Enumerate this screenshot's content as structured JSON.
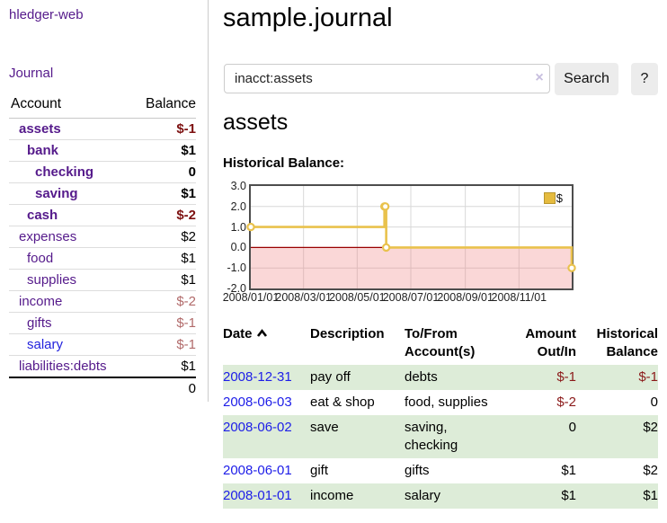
{
  "app": {
    "title": "hledger-web"
  },
  "sidebar": {
    "journal_link": "Journal",
    "accounts_table": {
      "headers": {
        "account": "Account",
        "balance": "Balance"
      },
      "rows": [
        {
          "name": "assets",
          "depth": 1,
          "bold": true,
          "balance": "$-1",
          "neg": true,
          "muted": false
        },
        {
          "name": "bank",
          "depth": 2,
          "bold": true,
          "balance": "$1",
          "neg": false,
          "muted": false
        },
        {
          "name": "checking",
          "depth": 3,
          "bold": true,
          "balance": "0",
          "neg": false,
          "muted": false
        },
        {
          "name": "saving",
          "depth": 3,
          "bold": true,
          "balance": "$1",
          "neg": false,
          "muted": false
        },
        {
          "name": "cash",
          "depth": 2,
          "bold": true,
          "balance": "$-2",
          "neg": true,
          "muted": false
        },
        {
          "name": "expenses",
          "depth": 1,
          "bold": false,
          "balance": "$2",
          "neg": false,
          "muted": false
        },
        {
          "name": "food",
          "depth": 2,
          "bold": false,
          "balance": "$1",
          "neg": false,
          "muted": false
        },
        {
          "name": "supplies",
          "depth": 2,
          "bold": false,
          "balance": "$1",
          "neg": false,
          "muted": false
        },
        {
          "name": "income",
          "depth": 1,
          "bold": false,
          "balance": "$-2",
          "neg": true,
          "muted": true
        },
        {
          "name": "gifts",
          "depth": 2,
          "bold": false,
          "balance": "$-1",
          "neg": true,
          "muted": true
        },
        {
          "name": "salary",
          "depth": 2,
          "bold": false,
          "balance": "$-1",
          "neg": true,
          "muted": true,
          "link_color": "blue"
        },
        {
          "name": "liabilities:debts",
          "depth": 1,
          "bold": false,
          "balance": "$1",
          "neg": false,
          "muted": false
        }
      ],
      "total": "0"
    }
  },
  "main": {
    "title": "sample.journal",
    "search": {
      "value": "inacct:assets",
      "clear_label": "×",
      "button_label": "Search",
      "help_label": "?"
    },
    "account_heading": "assets",
    "chart_heading": "Historical Balance:"
  },
  "chart_data": {
    "type": "line",
    "title": "Historical Balance:",
    "step": true,
    "x_domain": [
      "2008-01-01",
      "2008-12-31"
    ],
    "y_domain": [
      -2,
      3
    ],
    "x_ticks": [
      {
        "date": "2008-01-01",
        "label": "2008/01/01"
      },
      {
        "date": "2008-03-01",
        "label": "2008/03/01"
      },
      {
        "date": "2008-05-01",
        "label": "2008/05/01"
      },
      {
        "date": "2008-07-01",
        "label": "2008/07/01"
      },
      {
        "date": "2008-09-01",
        "label": "2008/09/01"
      },
      {
        "date": "2008-11-01",
        "label": "2008/11/01"
      }
    ],
    "y_ticks": [
      {
        "value": 3,
        "label": "3.0"
      },
      {
        "value": 2,
        "label": "2.0"
      },
      {
        "value": 1,
        "label": "1.0"
      },
      {
        "value": 0,
        "label": "0.0"
      },
      {
        "value": -1,
        "label": "-1.0"
      },
      {
        "value": -2,
        "label": "-2.0"
      }
    ],
    "series": [
      {
        "name": "$",
        "color": "#e9c24d",
        "points": [
          {
            "date": "2008-01-01",
            "value": 1
          },
          {
            "date": "2008-06-01",
            "value": 2
          },
          {
            "date": "2008-06-02",
            "value": 2
          },
          {
            "date": "2008-06-03",
            "value": 0
          },
          {
            "date": "2008-12-31",
            "value": -1
          }
        ]
      }
    ],
    "legend": {
      "label": "$",
      "position": "top-right"
    },
    "grid": true,
    "grid_color": "#d8d8d8",
    "zero_line_color": "#990000",
    "negative_region_rgba": "rgba(240,130,130,0.32)",
    "border_color": "#4d4d4d"
  },
  "transactions": {
    "sort": "date-ascending",
    "headers": {
      "date": "Date",
      "description": "Description",
      "accounts_line1": "To/From",
      "accounts_line2": "Account(s)",
      "amount_line1": "Amount",
      "amount_line2": "Out/In",
      "balance_line1": "Historical",
      "balance_line2": "Balance"
    },
    "rows": [
      {
        "date": "2008-12-31",
        "description": "pay off",
        "accounts": "debts",
        "amount": "$-1",
        "amount_neg": true,
        "balance": "$-1",
        "balance_neg": true
      },
      {
        "date": "2008-06-03",
        "description": "eat & shop",
        "accounts": "food, supplies",
        "amount": "$-2",
        "amount_neg": true,
        "balance": "0",
        "balance_neg": false
      },
      {
        "date": "2008-06-02",
        "description": "save",
        "accounts": "saving, checking",
        "amount": "0",
        "amount_neg": false,
        "balance": "$2",
        "balance_neg": false
      },
      {
        "date": "2008-06-01",
        "description": "gift",
        "accounts": "gifts",
        "amount": "$1",
        "amount_neg": false,
        "balance": "$2",
        "balance_neg": false
      },
      {
        "date": "2008-01-01",
        "description": "income",
        "accounts": "salary",
        "amount": "$1",
        "amount_neg": false,
        "balance": "$1",
        "balance_neg": false
      }
    ]
  },
  "colors": {
    "link_purple": "#551a8b",
    "link_blue": "#1d1de8",
    "negative_strong": "#7d1111",
    "negative_table": "#8b1a1a",
    "negative_muted": "#b16a6a",
    "row_stripe_green": "#ddecd8",
    "series_gold": "#e9c24d",
    "button_gray": "#ececec"
  }
}
